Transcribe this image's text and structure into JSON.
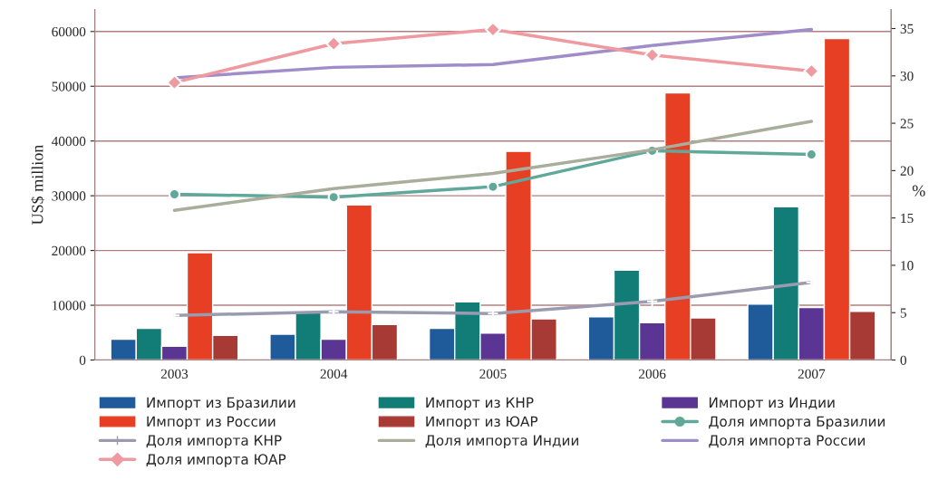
{
  "chart_data": {
    "type": "bar",
    "ylabel": "US$ million",
    "y2label": "%",
    "categories": [
      "2003",
      "2004",
      "2005",
      "2006",
      "2007"
    ],
    "ylim": [
      0,
      64000
    ],
    "yticks": [
      0,
      10000,
      20000,
      30000,
      40000,
      50000,
      60000
    ],
    "y2lim": [
      0,
      37
    ],
    "y2ticks": [
      0,
      5,
      10,
      15,
      20,
      25,
      30,
      35
    ],
    "grid": "y",
    "legend": "bottom",
    "series": [
      {
        "name": "Импорт из Бразилии",
        "color": "#1f5a9a",
        "values": [
          3800,
          4700,
          5800,
          7900,
          10200
        ]
      },
      {
        "name": "Импорт из КНР",
        "color": "#127c76",
        "values": [
          5800,
          8800,
          10600,
          16400,
          28000
        ]
      },
      {
        "name": "Импорт из Индии",
        "color": "#5b3593",
        "values": [
          2500,
          3800,
          4900,
          6800,
          9600
        ]
      },
      {
        "name": "Импорт из России",
        "color": "#e63f23",
        "values": [
          19600,
          28300,
          38100,
          48800,
          58700
        ]
      },
      {
        "name": "Импорт из ЮАР",
        "color": "#a83a35",
        "values": [
          4500,
          6500,
          7500,
          7700,
          8900
        ]
      },
      {
        "name": "Доля импорта Бразилии",
        "type": "line",
        "axis": "y2",
        "marker": "circle",
        "color": "#5fa89a",
        "values": [
          17.5,
          17.2,
          18.3,
          22.1,
          21.7
        ]
      },
      {
        "name": "Доля импорта КНР",
        "type": "line",
        "axis": "y2",
        "marker": "cross",
        "color": "#9b9bb0",
        "values": [
          4.7,
          5.1,
          4.9,
          6.2,
          8.2
        ]
      },
      {
        "name": "Доля импорта Индии",
        "type": "line",
        "axis": "y2",
        "marker": "none",
        "color": "#a9ad9b",
        "values": [
          15.8,
          18.1,
          19.7,
          22.2,
          25.2
        ]
      },
      {
        "name": "Доля импорта России",
        "type": "line",
        "axis": "y2",
        "marker": "none",
        "color": "#a08cc8",
        "values": [
          29.8,
          30.9,
          31.2,
          33.2,
          34.9
        ]
      },
      {
        "name": "Доля импорта ЮАР",
        "type": "line",
        "axis": "y2",
        "marker": "diamond",
        "color": "#ef9aa0",
        "values": [
          29.3,
          33.4,
          34.9,
          32.2,
          30.5
        ]
      }
    ]
  }
}
